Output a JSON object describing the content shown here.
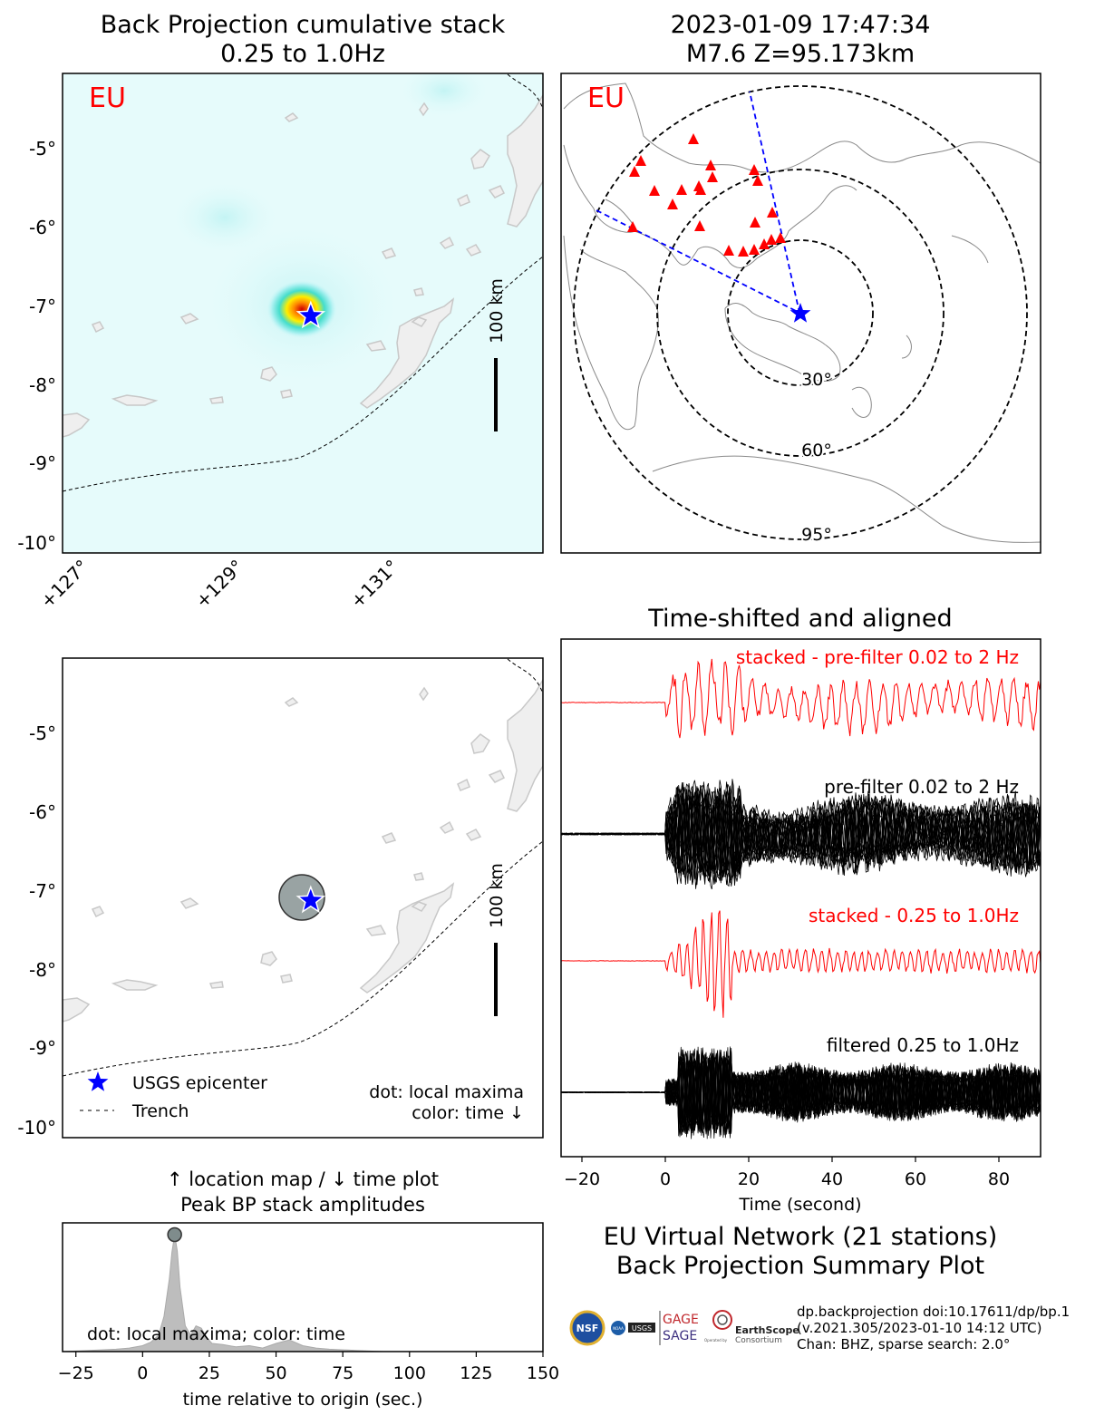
{
  "panels": {
    "bp_map": {
      "title_line1": "Back Projection cumulative stack",
      "title_line2": "0.25 to 1.0Hz",
      "network_label": "EU",
      "lat_ticks": [
        "-5°",
        "-6°",
        "-7°",
        "-8°",
        "-9°",
        "-10°"
      ],
      "lon_ticks": [
        "+127°",
        "+129°",
        "+131°"
      ],
      "scale_label": "100 km"
    },
    "globe": {
      "title_line1": "2023-01-09 17:47:34",
      "title_line2": "M7.6 Z=95.173km",
      "network_label": "EU",
      "rings": [
        "30°",
        "60°",
        "95°"
      ]
    },
    "location_map": {
      "lat_ticks": [
        "-5°",
        "-6°",
        "-7°",
        "-8°",
        "-9°",
        "-10°"
      ],
      "scale_label": "100 km",
      "legend_star": "USGS epicenter",
      "legend_trench": "Trench",
      "note_line1": "dot: local maxima",
      "note_line2": "color: time ↓"
    },
    "peak": {
      "title_line1": "↑ location map / ↓ time plot",
      "title_line2": "Peak BP stack amplitudes",
      "note": "dot: local maxima; color: time",
      "xlabel": "time relative to origin (sec.)"
    },
    "traces": {
      "title": "Time-shifted and aligned",
      "xlabel": "Time (second)",
      "label_stack_pre": "stacked - pre-filter 0.02 to 2 Hz",
      "label_pre": "pre-filter 0.02 to 2 Hz",
      "label_stack_bp": "stacked - 0.25 to 1.0Hz",
      "label_filt": "filtered 0.25 to 1.0Hz"
    }
  },
  "summary": {
    "line1": "EU Virtual Network (21 stations)",
    "line2": "Back Projection Summary Plot"
  },
  "credits": {
    "line1": "dp.backprojection doi:10.17611/dp/bp.1",
    "line2": "(v.2021.305/2023-01-10 14:12 UTC)",
    "line3": "Chan: BHZ, sparse search: 2.0°"
  },
  "logos": {
    "nsf": "NSF",
    "noaa": "NOAA",
    "usgs": "USGS",
    "gage": "GAGE",
    "sage": "SAGE",
    "earthscope": "EarthScope",
    "consortium": "Consortium",
    "operated_by": "Operated by"
  },
  "colors": {
    "accent_red": "#ff0000",
    "star_blue": "#0000ff",
    "trace_black": "#000000",
    "peak_fill": "#bdbdbd",
    "dot_gray": "#7f8c8c"
  },
  "chart_data": [
    {
      "type": "line",
      "name": "peak_bp_stack_amplitudes",
      "x": [
        -30,
        -20,
        -10,
        -5,
        0,
        3,
        6,
        8,
        10,
        11,
        12,
        13,
        14,
        16,
        18,
        20,
        22,
        24,
        26,
        30,
        35,
        40,
        45,
        50,
        55,
        60,
        65,
        70,
        80,
        90,
        100,
        120,
        150
      ],
      "y": [
        0,
        0.01,
        0.02,
        0.03,
        0.05,
        0.08,
        0.14,
        0.3,
        0.62,
        0.85,
        1.0,
        0.86,
        0.55,
        0.22,
        0.14,
        0.22,
        0.2,
        0.12,
        0.07,
        0.06,
        0.04,
        0.05,
        0.03,
        0.07,
        0.1,
        0.05,
        0.03,
        0.02,
        0.01,
        0.0,
        0.0,
        0.0,
        0.0
      ],
      "peak_dot": {
        "x": 12,
        "y": 1.0
      },
      "xlim": [
        -30,
        150
      ],
      "xticks": [
        -25,
        0,
        25,
        50,
        75,
        100,
        125,
        150
      ],
      "xlabel": "time relative to origin (sec.)"
    },
    {
      "type": "line",
      "name": "time_shifted_traces",
      "xlim": [
        -25,
        90
      ],
      "xticks": [
        -20,
        0,
        20,
        40,
        60,
        80
      ],
      "xlabel": "Time (second)",
      "series": [
        {
          "name": "stacked - pre-filter 0.02 to 2 Hz",
          "color": "#ff0000",
          "count": 1
        },
        {
          "name": "pre-filter 0.02 to 2 Hz",
          "color": "#000000",
          "count": 21
        },
        {
          "name": "stacked - 0.25 to 1.0Hz",
          "color": "#ff0000",
          "count": 1
        },
        {
          "name": "filtered 0.25 to 1.0Hz",
          "color": "#000000",
          "count": 21
        }
      ],
      "p_arrival": 0
    },
    {
      "type": "scatter",
      "name": "bp_location_map",
      "xlim": [
        126.9,
        132.9
      ],
      "ylim": [
        -10.1,
        -4.1
      ],
      "epicenter": {
        "lon": 130.0,
        "lat": -7.1
      },
      "peak_location": {
        "lon": 130.0,
        "lat": -7.1
      }
    }
  ]
}
